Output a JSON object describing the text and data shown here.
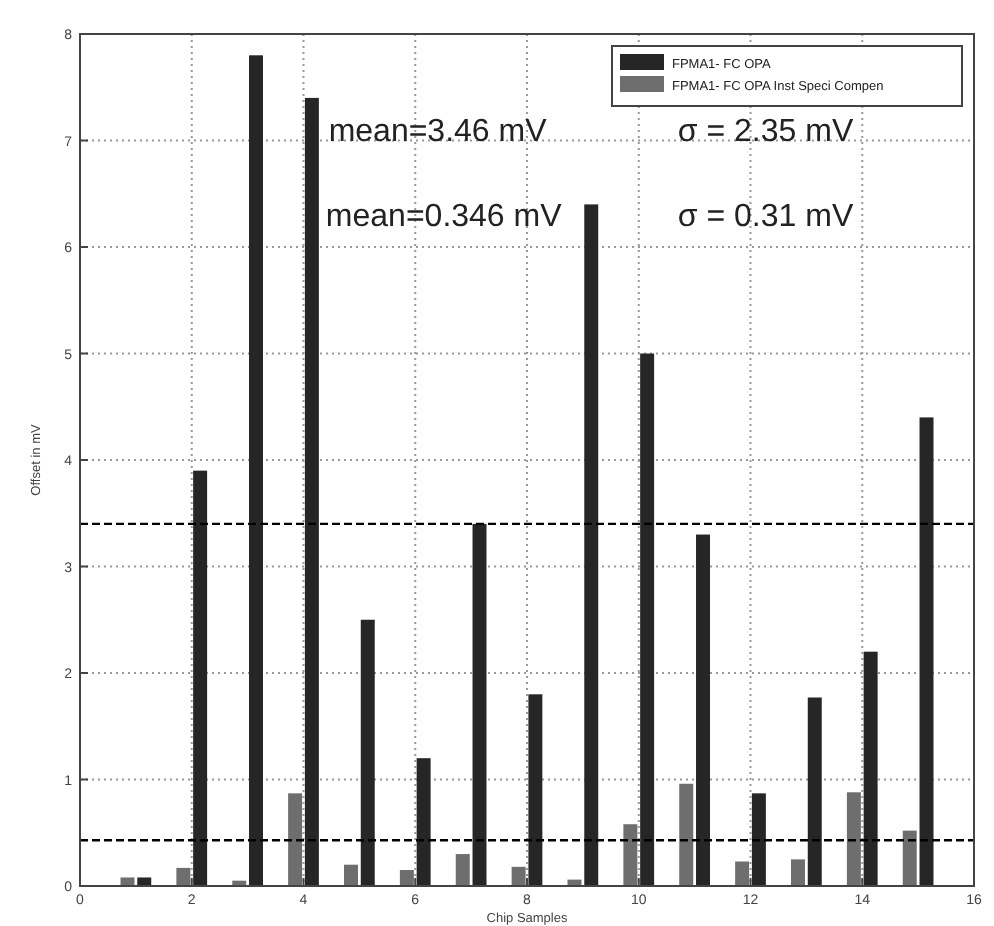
{
  "chart_data": {
    "type": "bar",
    "xlabel": "Chip Samples",
    "ylabel": "Offset in mV",
    "x": [
      1,
      2,
      3,
      4,
      5,
      6,
      7,
      8,
      9,
      10,
      11,
      12,
      13,
      14,
      15
    ],
    "series": [
      {
        "name": "FPMA1- FC OPA",
        "color": "#262626",
        "values": [
          0.08,
          3.9,
          7.8,
          7.4,
          2.5,
          1.2,
          3.4,
          1.8,
          6.4,
          5.0,
          3.3,
          0.87,
          1.77,
          2.2,
          4.4
        ]
      },
      {
        "name": "FPMA1- FC OPA Inst Speci Compen",
        "color": "#6e6e6e",
        "values": [
          0.08,
          0.17,
          0.05,
          0.87,
          0.2,
          0.15,
          0.3,
          0.18,
          0.06,
          0.58,
          0.96,
          0.23,
          0.25,
          0.88,
          0.52
        ]
      }
    ],
    "xlim": [
      0,
      16
    ],
    "xticks": [
      0,
      2,
      4,
      6,
      8,
      10,
      12,
      14,
      16
    ],
    "ylim": [
      0,
      8
    ],
    "yticks": [
      0,
      1,
      2,
      3,
      4,
      5,
      6,
      7,
      8
    ],
    "ref_lines": [
      {
        "axis": "y",
        "value": 3.4,
        "line_style": "dashed",
        "color": "#000000"
      },
      {
        "axis": "y",
        "value": 0.43,
        "line_style": "dashed",
        "color": "#000000"
      }
    ],
    "annotations": [
      "mean=3.46 mV",
      "mean=0.346 mV",
      "σ = 2.35 mV",
      "σ = 0.31 mV"
    ],
    "grid": true,
    "legend": "top right"
  }
}
